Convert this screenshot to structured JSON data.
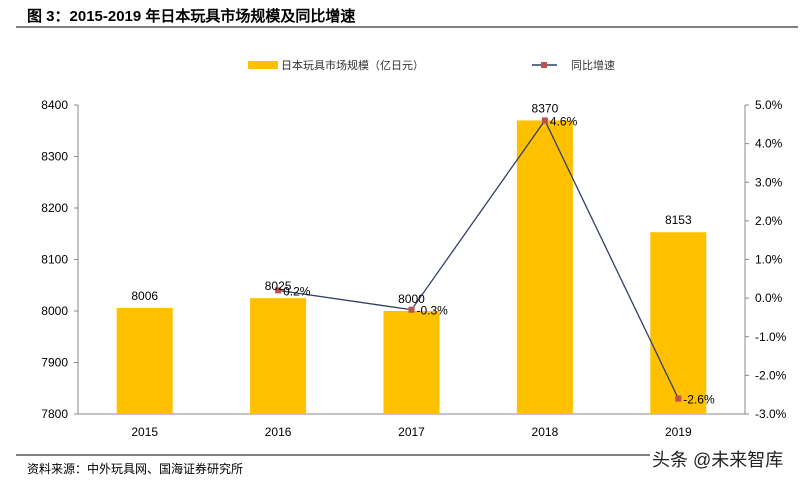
{
  "title": "图 3：2015-2019 年日本玩具市场规模及同比增速",
  "source": "资料来源：中外玩具网、国海证券研究所",
  "watermark": "头条 @未来智库",
  "colors": {
    "bar": "#FFC000",
    "line": "#2F3F6B",
    "marker": "#C0504D"
  },
  "chart_data": {
    "type": "bar+line",
    "categories": [
      "2015",
      "2016",
      "2017",
      "2018",
      "2019"
    ],
    "series": [
      {
        "name": "日本玩具市场规模（亿日元）",
        "type": "bar",
        "axis": "left",
        "values": [
          8006,
          8025,
          8000,
          8370,
          8153
        ],
        "labels": [
          "8006",
          "8025",
          "8000",
          "8370",
          "8153"
        ]
      },
      {
        "name": "同比增速",
        "type": "line",
        "axis": "right",
        "values": [
          null,
          0.2,
          -0.3,
          4.6,
          -2.6
        ],
        "labels": [
          "",
          "0.2%",
          "-0.3%",
          "4.6%",
          "-2.6%"
        ]
      }
    ],
    "left_axis": {
      "range": [
        7800,
        8400
      ],
      "ticks": [
        "7800",
        "7900",
        "8000",
        "8100",
        "8200",
        "8300",
        "8400"
      ]
    },
    "right_axis": {
      "range": [
        -3.0,
        5.0
      ],
      "ticks": [
        "-3.0%",
        "-2.0%",
        "-1.0%",
        "0.0%",
        "1.0%",
        "2.0%",
        "3.0%",
        "4.0%",
        "5.0%"
      ]
    },
    "legend": "top-center",
    "grid": false
  }
}
